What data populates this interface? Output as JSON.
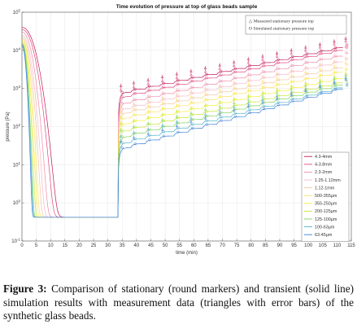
{
  "chart_data": {
    "type": "line",
    "title": "Time evolution of pressure at top of glass beads sample",
    "xlabel": "time (min)",
    "ylabel": "pressure (Pa)",
    "xlim": [
      0,
      115
    ],
    "ylim": [
      0.1,
      100000
    ],
    "yscale": "log",
    "x_ticks": [
      0,
      5,
      10,
      15,
      20,
      25,
      30,
      35,
      40,
      45,
      50,
      55,
      60,
      65,
      70,
      75,
      80,
      85,
      90,
      95,
      100,
      105,
      110,
      115
    ],
    "y_ticks": [
      {
        "value": 0.1,
        "base": "10",
        "exp": "-1"
      },
      {
        "value": 1,
        "base": "10",
        "exp": "0"
      },
      {
        "value": 10,
        "base": "10",
        "exp": "1"
      },
      {
        "value": 100,
        "base": "10",
        "exp": "2"
      },
      {
        "value": 1000,
        "base": "10",
        "exp": "3"
      },
      {
        "value": 10000,
        "base": "10",
        "exp": "4"
      },
      {
        "value": 100000,
        "base": "10",
        "exp": "5"
      }
    ],
    "grid": true,
    "legend_placement": "right",
    "marker_legend": [
      {
        "symbol": "△",
        "label": "Measured stationary pressure top"
      },
      {
        "symbol": "O",
        "label": "Simulated stationary pressure top"
      }
    ],
    "series": [
      {
        "name": "4.3-4mm",
        "color": "#c2185b",
        "p0": 40000,
        "tau": 4.0,
        "p_base": 0.42,
        "step_start": 800,
        "step_end": 14000
      },
      {
        "name": "4-3.8mm",
        "color": "#e04a7f",
        "p0": 35000,
        "tau": 3.6,
        "p_base": 0.42,
        "step_start": 620,
        "step_end": 12000
      },
      {
        "name": "2.3-2mm",
        "color": "#f08aa8",
        "p0": 30000,
        "tau": 3.0,
        "p_base": 0.42,
        "step_start": 420,
        "step_end": 8500
      },
      {
        "name": "1.25-1.12mm",
        "color": "#f7b8c6",
        "p0": 25000,
        "tau": 2.6,
        "p_base": 0.42,
        "step_start": 300,
        "step_end": 6000
      },
      {
        "name": "1.12-1mm",
        "color": "#f3c7a0",
        "p0": 22000,
        "tau": 2.3,
        "p_base": 0.42,
        "step_start": 230,
        "step_end": 4200
      },
      {
        "name": "500-355µm",
        "color": "#ffe066",
        "p0": 20000,
        "tau": 2.0,
        "p_base": 0.42,
        "step_start": 170,
        "step_end": 3200
      },
      {
        "name": "355-250µm",
        "color": "#f7ef3a",
        "p0": 18000,
        "tau": 1.8,
        "p_base": 0.42,
        "step_start": 120,
        "step_end": 2200
      },
      {
        "name": "200-125µm",
        "color": "#c8e632",
        "p0": 16000,
        "tau": 1.6,
        "p_base": 0.42,
        "step_start": 80,
        "step_end": 1700
      },
      {
        "name": "125-100µm",
        "color": "#7fd45a",
        "p0": 15000,
        "tau": 1.4,
        "p_base": 0.42,
        "step_start": 55,
        "step_end": 1500
      },
      {
        "name": "100-63µm",
        "color": "#4fb3c8",
        "p0": 14000,
        "tau": 1.3,
        "p_base": 0.42,
        "step_start": 38,
        "step_end": 1300
      },
      {
        "name": "63-45µm",
        "color": "#3c7fd9",
        "p0": 13000,
        "tau": 1.2,
        "p_base": 0.42,
        "step_start": 28,
        "step_end": 1200
      }
    ],
    "step_times_min": [
      33.5,
      38,
      43,
      48,
      53,
      58,
      63,
      68,
      73,
      78,
      83,
      88,
      93,
      98,
      103,
      108,
      112
    ],
    "decay_end_min": 33.5
  },
  "caption": {
    "label": "Figure 3:",
    "text": "Comparison of stationary (round markers) and transient (solid line) simulation results with measurement data (triangles with error bars) of the synthetic glass beads."
  }
}
